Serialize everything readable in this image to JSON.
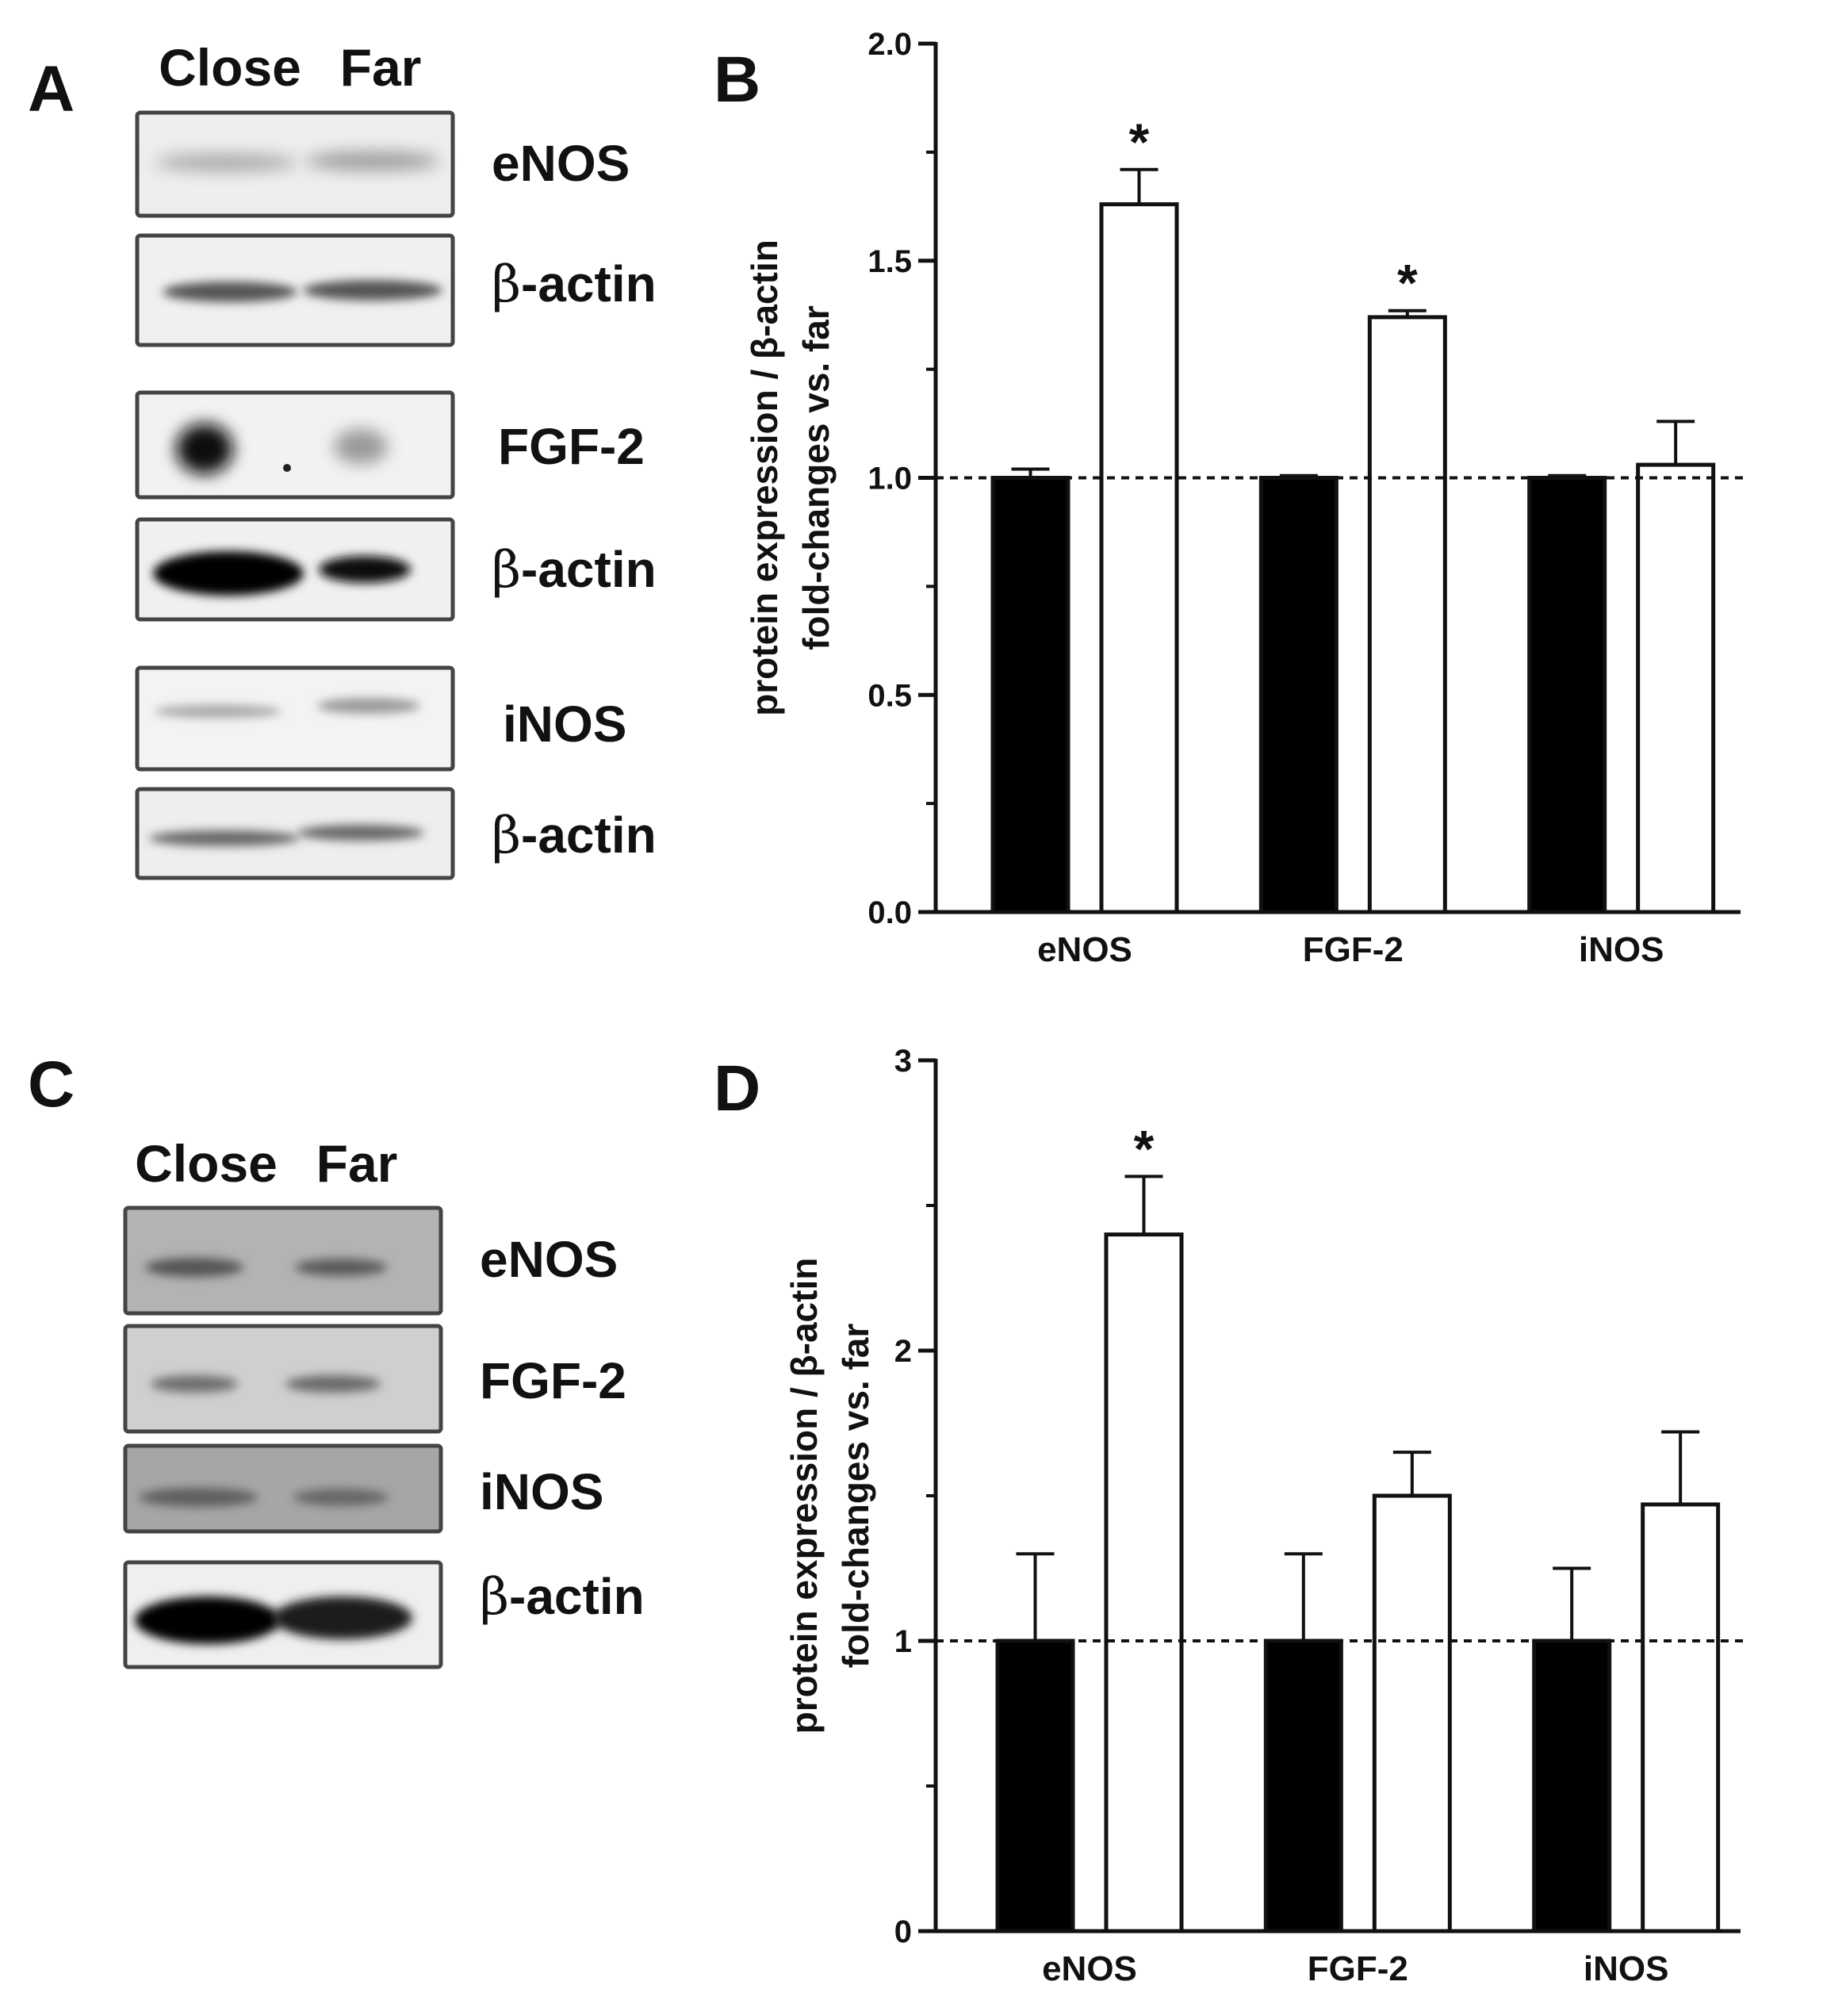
{
  "panels": {
    "A": {
      "letter": "A",
      "lanes": [
        "Close",
        "Far"
      ],
      "blots": [
        {
          "label": "eNOS"
        },
        {
          "label_prefix": "β",
          "label": "-actin"
        },
        {
          "label": "FGF-2"
        },
        {
          "label_prefix": "β",
          "label": "-actin"
        },
        {
          "label": "iNOS"
        },
        {
          "label_prefix": "β",
          "label": "-actin"
        }
      ]
    },
    "B": {
      "letter": "B"
    },
    "C": {
      "letter": "C",
      "lanes": [
        "Close",
        "Far"
      ],
      "blots": [
        {
          "label": "eNOS"
        },
        {
          "label": "FGF-2"
        },
        {
          "label": "iNOS"
        },
        {
          "label_prefix": "β",
          "label": "-actin"
        }
      ]
    },
    "D": {
      "letter": "D"
    }
  },
  "chart_data": [
    {
      "panel": "B",
      "type": "bar",
      "categories": [
        "eNOS",
        "FGF-2",
        "iNOS"
      ],
      "series": [
        {
          "color": "#000000",
          "values": [
            1.0,
            1.0,
            1.0
          ],
          "errors": [
            0.02,
            0.005,
            0.005
          ]
        },
        {
          "color": "#ffffff",
          "values": [
            1.63,
            1.37,
            1.03
          ],
          "errors": [
            0.08,
            0.015,
            0.1
          ]
        }
      ],
      "significance": [
        "*",
        "*",
        ""
      ],
      "ylabel_line1": "protein expression / β-actin",
      "ylabel_line2": "fold-changes vs. far",
      "ylim": [
        0,
        2.0
      ],
      "yticks": [
        "0.0",
        "0.5",
        "1.0",
        "1.5",
        "2.0"
      ],
      "reference_line": 1.0
    },
    {
      "panel": "D",
      "type": "bar",
      "categories": [
        "eNOS",
        "FGF-2",
        "iNOS"
      ],
      "series": [
        {
          "color": "#000000",
          "values": [
            1.0,
            1.0,
            1.0
          ],
          "errors": [
            0.3,
            0.3,
            0.25
          ]
        },
        {
          "color": "#ffffff",
          "values": [
            2.4,
            1.5,
            1.47
          ],
          "errors": [
            0.2,
            0.15,
            0.25
          ]
        }
      ],
      "significance": [
        "*",
        "",
        ""
      ],
      "ylabel_line1": "protein expression / β-actin",
      "ylabel_line2": "fold-changes vs. far",
      "ylim": [
        0,
        3
      ],
      "yticks": [
        "0",
        "1",
        "2",
        "3"
      ],
      "reference_line": 1
    }
  ]
}
